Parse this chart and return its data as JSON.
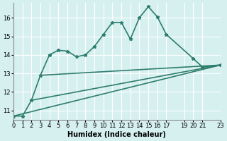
{
  "xlabel": "Humidex (Indice chaleur)",
  "bg_color": "#d6f0f0",
  "grid_color": "#ffffff",
  "line_color": "#2e7d6e",
  "xlim": [
    0,
    23
  ],
  "ylim": [
    10.5,
    16.8
  ],
  "yticks": [
    11,
    12,
    13,
    14,
    15,
    16
  ],
  "xticks": [
    0,
    1,
    2,
    3,
    4,
    5,
    6,
    7,
    8,
    9,
    10,
    11,
    12,
    13,
    14,
    15,
    16,
    17,
    19,
    20,
    21,
    23
  ],
  "series1_x": [
    0,
    1,
    2,
    3,
    4,
    5,
    6,
    7,
    8,
    9,
    10,
    11,
    12,
    13,
    14,
    15,
    16,
    17,
    20,
    21,
    23
  ],
  "series1_y": [
    10.7,
    10.7,
    11.55,
    12.9,
    14.0,
    14.25,
    14.2,
    13.9,
    14.0,
    14.45,
    15.1,
    15.75,
    15.75,
    14.85,
    16.0,
    16.6,
    16.05,
    15.1,
    13.8,
    13.35,
    13.45
  ],
  "series2_x": [
    0,
    23
  ],
  "series2_y": [
    10.7,
    13.45
  ],
  "series3_x": [
    2,
    23
  ],
  "series3_y": [
    11.55,
    13.45
  ],
  "series4_x": [
    3,
    23
  ],
  "series4_y": [
    12.9,
    13.45
  ],
  "marker_size": 3.5,
  "linewidth": 1.2
}
